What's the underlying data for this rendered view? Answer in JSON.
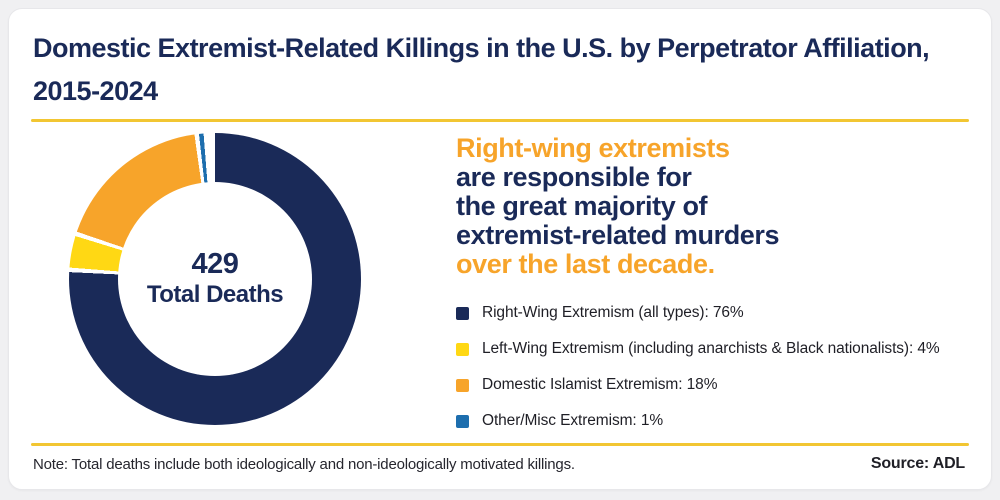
{
  "card": {
    "title": "Domestic Extremist-Related Killings in the U.S. by Perpetrator Affiliation, 2015-2024",
    "note": "Note: Total deaths include both ideologically and non-ideologically motivated killings.",
    "source": "Source: ADL"
  },
  "donut": {
    "center_value": "429",
    "center_label": "Total Deaths"
  },
  "headline": {
    "lines": [
      {
        "text": "Right-wing extremists",
        "color": "#F7A42A"
      },
      {
        "text": "are responsible for",
        "color": "#1A2A58"
      },
      {
        "text": "the great majority of",
        "color": "#1A2A58"
      },
      {
        "text": "extremist-related murders",
        "color": "#1A2A58"
      },
      {
        "text": "over the last decade.",
        "color": "#F7A42A"
      }
    ]
  },
  "chart_data": {
    "type": "pie",
    "subtype": "donut",
    "title": "Domestic Extremist-Related Killings in the U.S. by Perpetrator Affiliation, 2015-2024",
    "total_deaths": 429,
    "center_text": "429 Total Deaths",
    "legend_position": "right",
    "start_angle_deg": 0,
    "direction": "clockwise",
    "segments": [
      {
        "name": "Right-Wing Extremism (all types)",
        "value_pct": 76,
        "color": "#1A2A58",
        "label": "Right-Wing Extremism (all types): 76%"
      },
      {
        "name": "Left-Wing Extremism (including anarchists & Black nationalists)",
        "value_pct": 4,
        "color": "#FFD814",
        "label": "Left-Wing Extremism (including anarchists & Black nationalists): 4%"
      },
      {
        "name": "Domestic Islamist Extremism",
        "value_pct": 18,
        "color": "#F7A42A",
        "label": "Domestic Islamist Extremism: 18%"
      },
      {
        "name": "Other/Misc Extremism",
        "value_pct": 1,
        "color": "#1D6EAE",
        "label": "Other/Misc Extremism: 1%"
      }
    ]
  },
  "colors": {
    "navy": "#1A2A58",
    "orange": "#F7A42A",
    "yellow": "#FFD814",
    "blue": "#1D6EAE",
    "divider_gold": "#F2C632",
    "card_bg": "#ffffff",
    "page_bg": "#f0f0f2",
    "body_text": "#1f1f26"
  }
}
